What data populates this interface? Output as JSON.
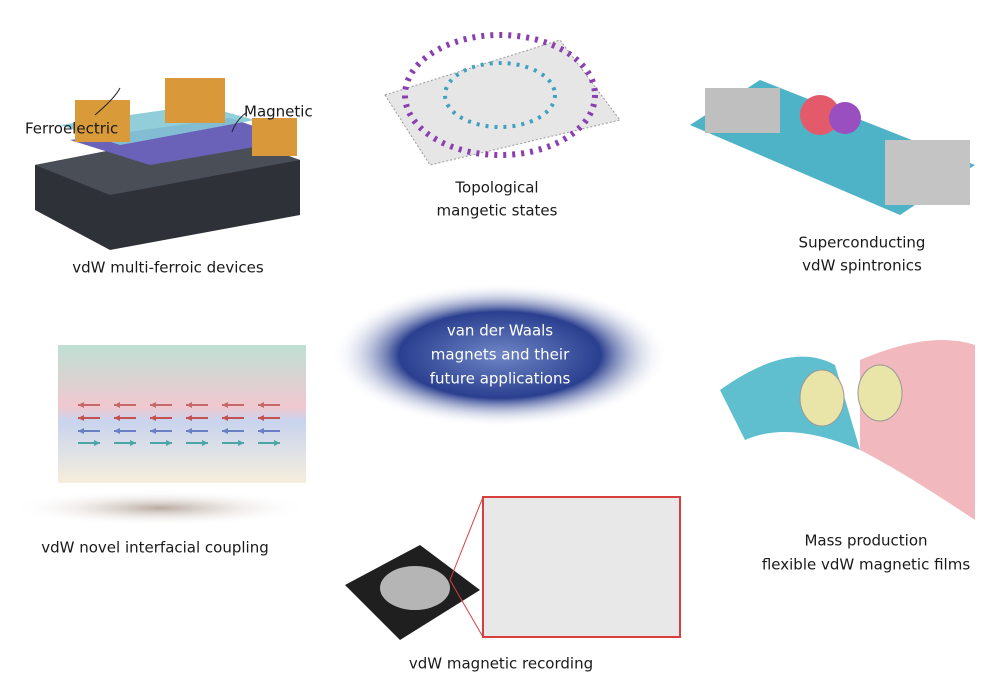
{
  "center": {
    "lines": [
      "van der Waals",
      "magnets and their",
      "future applications"
    ]
  },
  "callouts": [
    "Ferroelectric",
    "Magnetic"
  ],
  "panels": [
    {
      "lines": [
        "vdW multi-ferroic devices"
      ]
    },
    {
      "lines": [
        "Topological",
        "mangetic states"
      ]
    },
    {
      "lines": [
        "Superconducting",
        "vdW spintronics"
      ]
    },
    {
      "lines": [
        "vdW novel interfacial coupling"
      ]
    },
    {
      "lines": [
        "vdW magnetic recording"
      ]
    },
    {
      "lines": [
        "Mass production",
        "flexible vdW magnetic films"
      ]
    }
  ]
}
